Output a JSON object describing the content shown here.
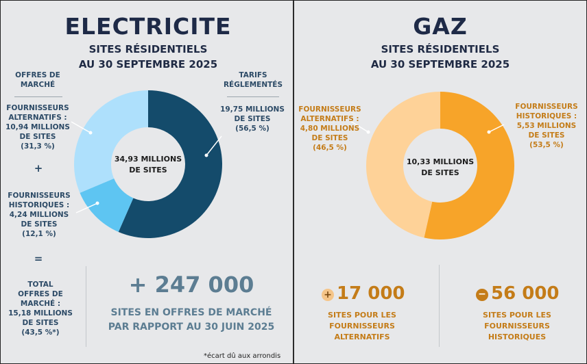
{
  "electricite": {
    "title": "ELECTRICITE",
    "subtitle_line1": "SITES RÉSIDENTIELS",
    "subtitle_line2": "AU 30 SEPTEMBRE 2025",
    "offres_header_line1": "OFFRES DE",
    "offres_header_line2": "MARCHÉ",
    "tarifs_header_line1": "TARIFS",
    "tarifs_header_line2": "RÉGLEMENTÉS",
    "alt_lines": [
      "FOURNISSEURS",
      "ALTERNATIFS :",
      "10,94 MILLIONS",
      "DE SITES",
      "(31,3 %)"
    ],
    "plus_sign": "+",
    "hist_lines": [
      "FOURNISSEURS",
      "HISTORIQUES :",
      "4,24 MILLIONS",
      "DE SITES",
      "(12,1 %)"
    ],
    "equals_sign": "=",
    "total_lines": [
      "TOTAL",
      "OFFRES DE",
      "MARCHÉ :",
      "15,18 MILLIONS",
      "DE SITES",
      "(43,5 %*)"
    ],
    "tarifs_lines": [
      "19,75 MILLIONS",
      "DE SITES",
      "(56,5 %)"
    ],
    "center_line1": "34,93 MILLIONS",
    "center_line2": "DE SITES",
    "big_number": "+ 247 000",
    "big_caption_line1": "SITES EN OFFRES DE MARCHÉ",
    "big_caption_line2": "PAR RAPPORT AU 30 JUIN 2025",
    "footnote": "*écart dû aux arrondis"
  },
  "gaz": {
    "title": "GAZ",
    "subtitle_line1": "SITES RÉSIDENTIELS",
    "subtitle_line2": "AU 30 SEPTEMBRE 2025",
    "alt_lines": [
      "FOURNISSEURS",
      "ALTERNATIFS :",
      "4,80 MILLIONS",
      "DE SITES",
      "(46,5 %)"
    ],
    "hist_lines": [
      "FOURNISSEURS",
      "HISTORIQUES :",
      "5,53 MILLIONS",
      "DE SITES",
      "(53,5 %)"
    ],
    "center_line1": "10,33 MILLIONS",
    "center_line2": "DE SITES",
    "alt_delta": "17 000",
    "hist_delta": "56 000",
    "alt_caption": [
      "SITES POUR LES",
      "FOURNISSEURS",
      "ALTERNATIFS"
    ],
    "hist_caption": [
      "SITES POUR LES",
      "FOURNISSEURS",
      "HISTORIQUES"
    ]
  },
  "chart_data": [
    {
      "type": "pie",
      "categories": [
        "Tarifs réglementés",
        "Fournisseurs historiques (offres de marché)",
        "Fournisseurs alternatifs"
      ],
      "values": [
        56.5,
        12.1,
        31.3
      ],
      "colors": [
        "#144b6b",
        "#5ec5f2",
        "#aee0fc"
      ]
    },
    {
      "type": "pie",
      "categories": [
        "Fournisseurs historiques",
        "Fournisseurs alternatifs"
      ],
      "values": [
        53.5,
        46.5
      ],
      "colors": [
        "#f7a429",
        "#fed298"
      ]
    }
  ]
}
